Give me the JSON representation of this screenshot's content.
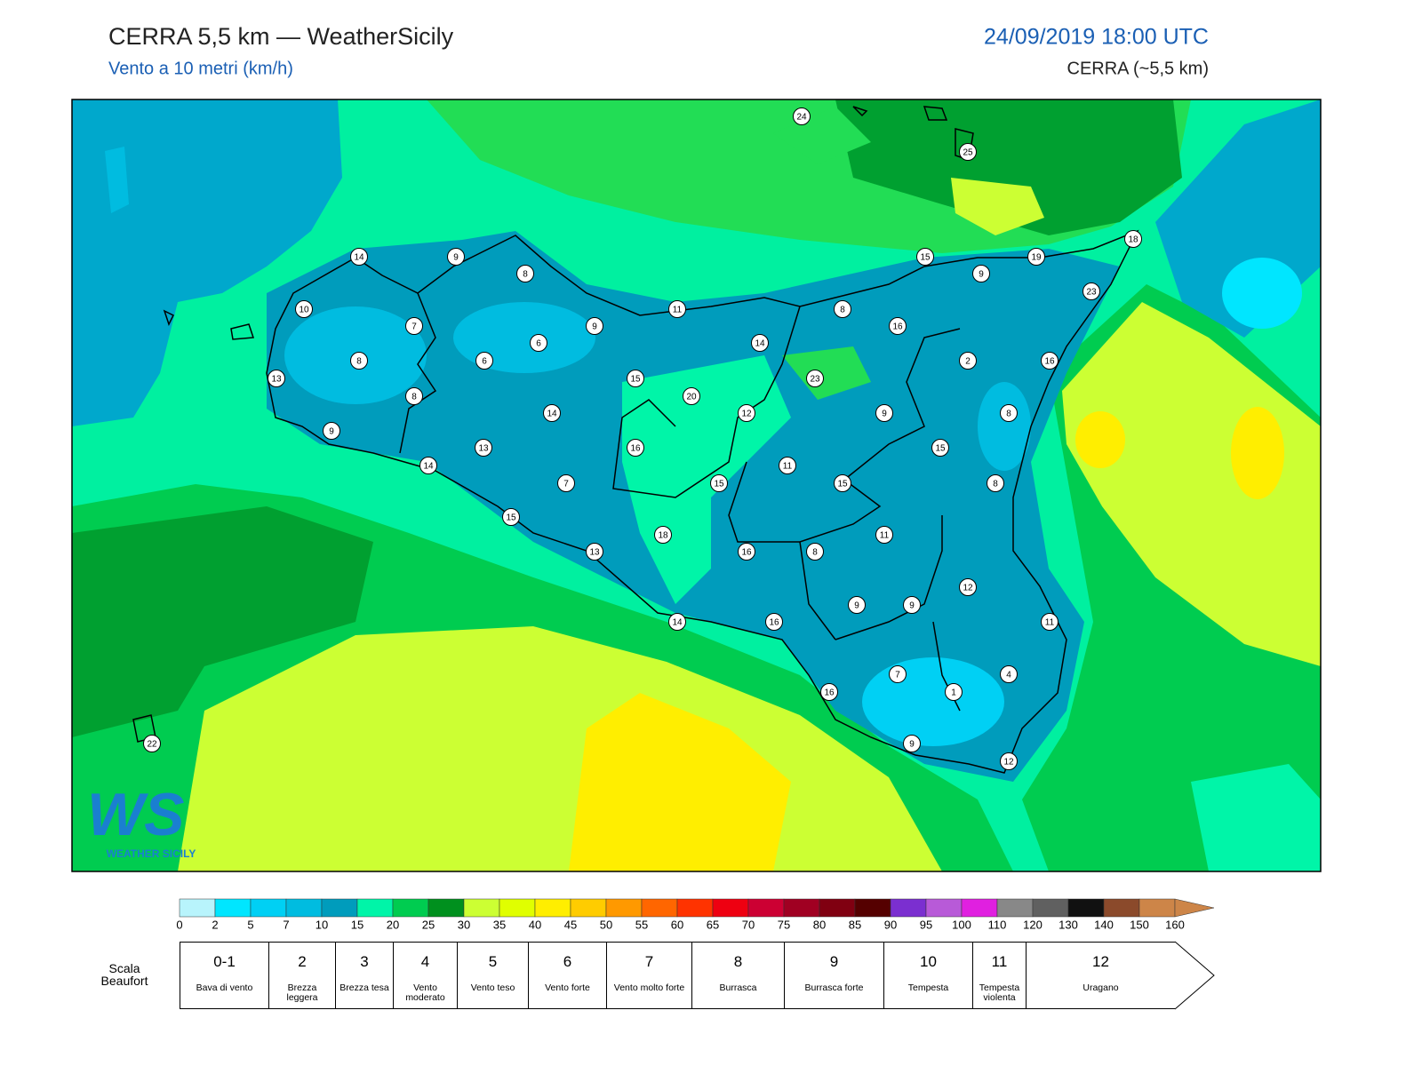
{
  "header": {
    "title": "CERRA 5,5 km — WeatherSicily",
    "subtitle": "Vento a 10 metri (km/h)",
    "datetime": "24/09/2019 18:00 UTC",
    "model": "CERRA (~5,5 km)"
  },
  "map": {
    "stations": [
      24,
      25,
      14,
      9,
      8,
      15,
      19,
      18,
      9,
      23,
      10,
      7,
      11,
      8,
      16,
      9,
      6,
      14,
      8,
      6,
      2,
      16,
      13,
      15,
      23,
      8,
      20,
      14,
      12,
      9,
      8,
      9,
      13,
      16,
      11,
      15,
      14,
      7,
      15,
      15,
      8,
      15,
      11,
      18,
      13,
      16,
      8,
      12,
      9,
      9,
      14,
      16,
      11,
      7,
      4,
      1,
      16,
      9,
      12,
      22
    ],
    "logo": "WS",
    "logo_text": "WEATHER SICILY"
  },
  "colorbar": {
    "ticks": [
      0,
      2,
      5,
      7,
      10,
      15,
      20,
      25,
      30,
      35,
      40,
      45,
      50,
      55,
      60,
      65,
      70,
      75,
      80,
      85,
      90,
      95,
      100,
      110,
      120,
      130,
      140,
      150,
      160
    ],
    "colors": [
      "#b8f4fc",
      "#00e6ff",
      "#00d0f4",
      "#00bce0",
      "#009cbc",
      "#00f5a8",
      "#00cc50",
      "#00901e",
      "#ccff33",
      "#e0ff00",
      "#ffee00",
      "#ffcc00",
      "#ff9900",
      "#ff6600",
      "#ff3300",
      "#ee0011",
      "#cc0033",
      "#a00022",
      "#800011",
      "#550000",
      "#7b2fd0",
      "#b85ad8",
      "#e020e0",
      "#888888",
      "#606060",
      "#111111",
      "#8b4a2b",
      "#cd8548"
    ]
  },
  "beaufort": {
    "title": "Scala Beaufort",
    "levels": [
      {
        "force": "0-1",
        "name": "Bava di vento"
      },
      {
        "force": 2,
        "name": "Brezza leggera"
      },
      {
        "force": 3,
        "name": "Brezza tesa"
      },
      {
        "force": 4,
        "name": "Vento moderato"
      },
      {
        "force": 5,
        "name": "Vento teso"
      },
      {
        "force": 6,
        "name": "Vento forte"
      },
      {
        "force": 7,
        "name": "Vento molto forte"
      },
      {
        "force": 8,
        "name": "Burrasca"
      },
      {
        "force": 9,
        "name": "Burrasca forte"
      },
      {
        "force": 10,
        "name": "Tempesta"
      },
      {
        "force": 11,
        "name": "Tempesta violenta"
      },
      {
        "force": 12,
        "name": "Uragano"
      }
    ]
  }
}
